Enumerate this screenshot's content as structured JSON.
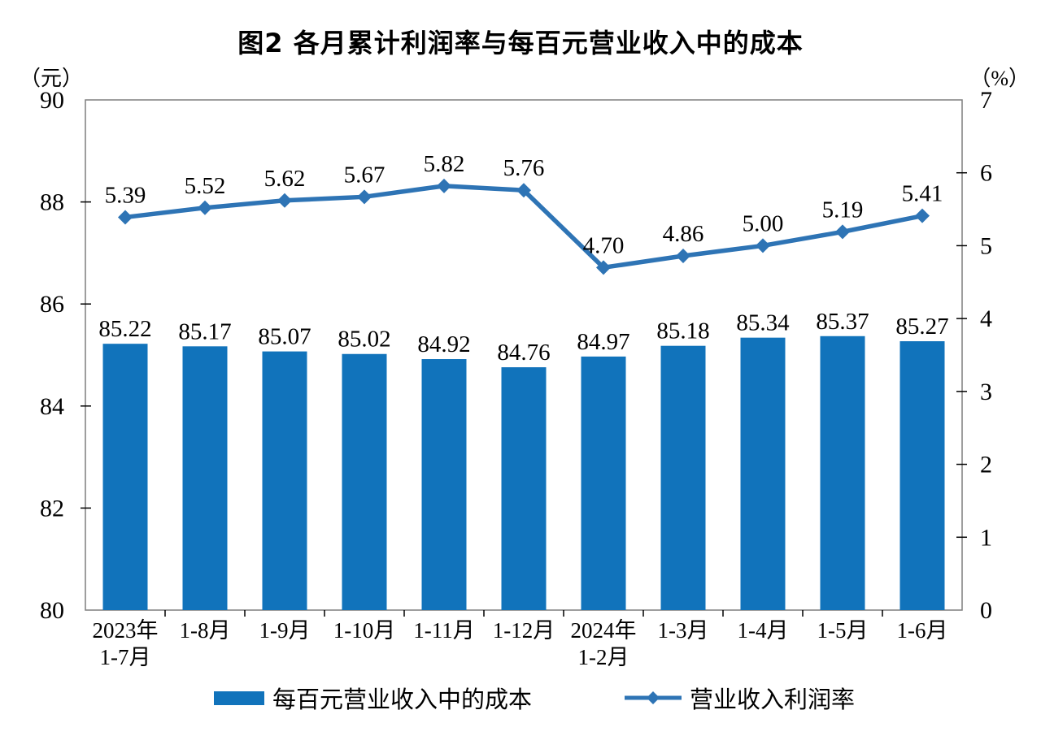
{
  "page": {
    "background": "#ffffff"
  },
  "chart_data": {
    "type": "combo-bar-line",
    "title": "图2  各月累计利润率与每百元营业收入中的成本",
    "left_axis": {
      "unit": "（元）",
      "min": 80,
      "max": 90,
      "tick_step": 2,
      "ticks": [
        90,
        88,
        86,
        84,
        82,
        80
      ]
    },
    "right_axis": {
      "unit": "（%）",
      "min": 0,
      "max": 7,
      "tick_step": 1,
      "ticks": [
        7,
        6,
        5,
        4,
        3,
        2,
        1,
        0
      ]
    },
    "categories": [
      [
        "2023年",
        "1-7月"
      ],
      [
        "1-8月"
      ],
      [
        "1-9月"
      ],
      [
        "1-10月"
      ],
      [
        "1-11月"
      ],
      [
        "1-12月"
      ],
      [
        "2024年",
        "1-2月"
      ],
      [
        "1-3月"
      ],
      [
        "1-4月"
      ],
      [
        "1-5月"
      ],
      [
        "1-6月"
      ]
    ],
    "series": [
      {
        "name": "每百元营业收入中的成本",
        "type": "bar",
        "axis": "left",
        "color": "#1173BB",
        "values": [
          85.22,
          85.17,
          85.07,
          85.02,
          84.92,
          84.76,
          84.97,
          85.18,
          85.34,
          85.37,
          85.27
        ]
      },
      {
        "name": "营业收入利润率",
        "type": "line",
        "axis": "right",
        "color": "#2E74B5",
        "values": [
          5.39,
          5.52,
          5.62,
          5.67,
          5.82,
          5.76,
          4.7,
          4.86,
          5.0,
          5.19,
          5.41
        ]
      }
    ],
    "legend_position": "bottom",
    "grid": false,
    "frame_color": "#7F7F7F",
    "tick_color": "#000000",
    "text_color": "#000000"
  }
}
